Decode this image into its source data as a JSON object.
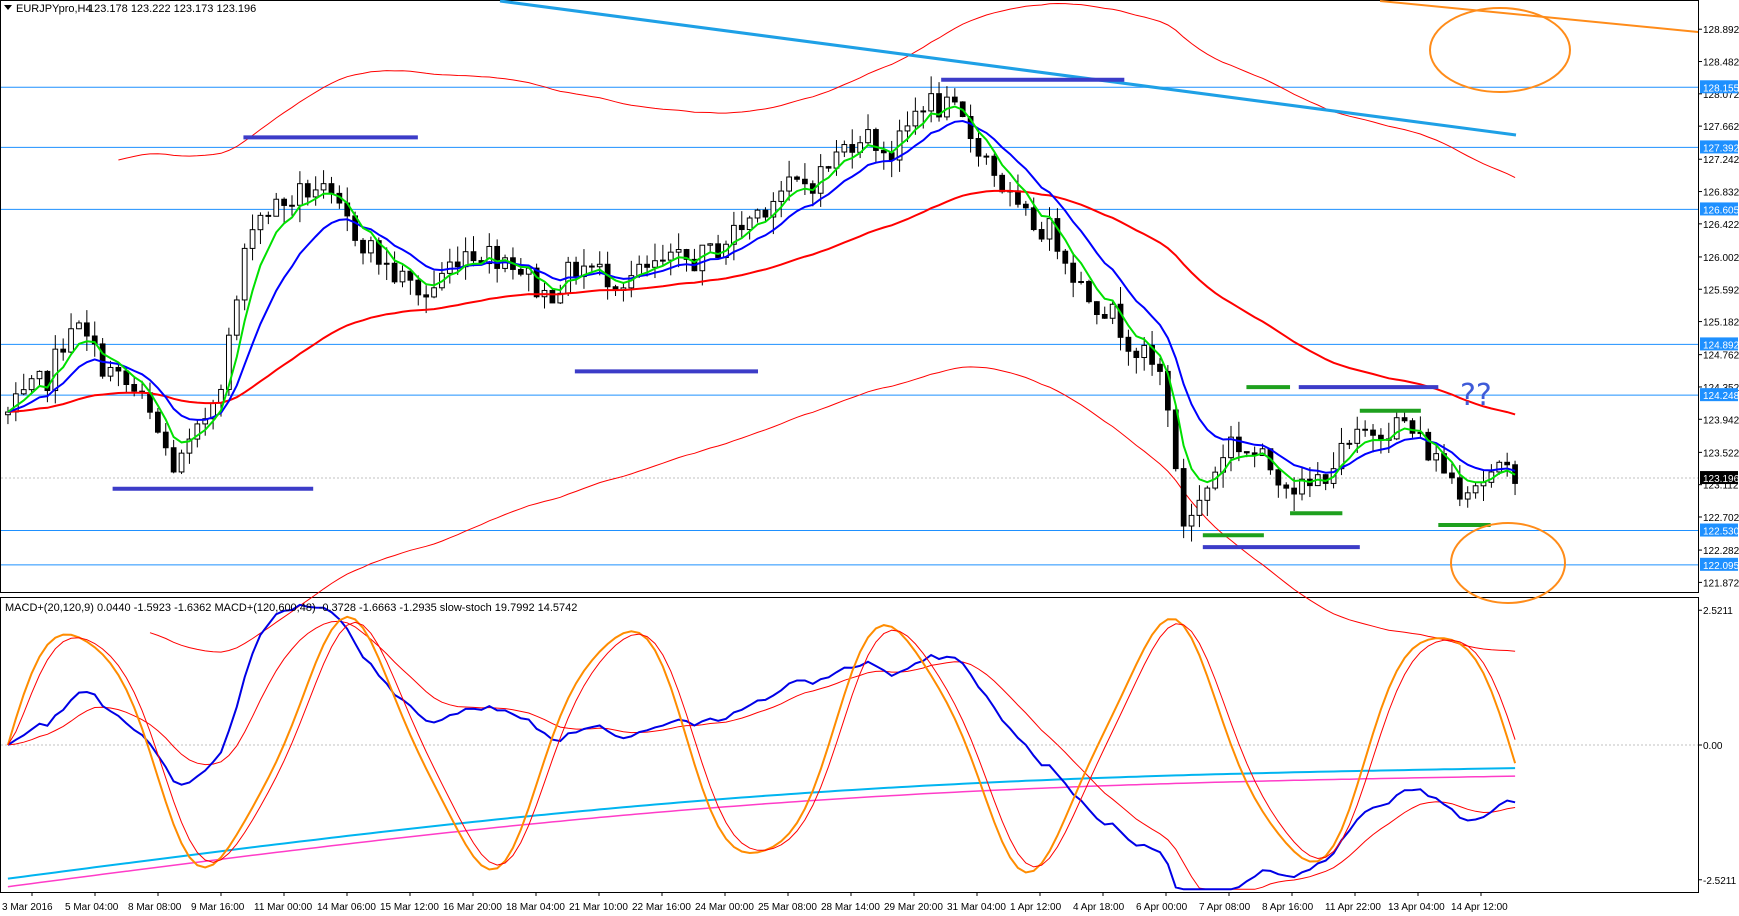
{
  "header": {
    "symbol": "EURJPYpro,H4",
    "ohlc": "123.178 123.222 123.173 123.196"
  },
  "indicator_header": "MACD+(20,120,9) 0.0440 -1.5923 -1.6362  MACD+(120,600,48) -0.3728 -1.6663 -1.2935  slow-stoch 19.7992 14.5742",
  "annotation": "??",
  "colors": {
    "background": "#ffffff",
    "bull_candle": "#ffffff",
    "bear_candle": "#000000",
    "horizontal_level": "#1e90ff",
    "price_tag": "#1e90ff",
    "current_price_tag": "#000000",
    "trendline": "#1ea0e6",
    "upper_trendline": "#ff8c1a",
    "ellipse": "#ff8c1a",
    "resistance_marker": "#3c3cc8",
    "support_marker": "#1ea01e",
    "ma_fast": "#00e000",
    "ma_mid": "#0000ff",
    "ma_slow": "#ff0000",
    "envelope": "#ff0000",
    "macd1_main": "#0000e6",
    "macd1_signal": "#ff0000",
    "macd2_main": "#00b4f0",
    "macd2_signal": "#ff3cc8",
    "stoch_main": "#ff8c00",
    "stoch_signal": "#ff0000"
  },
  "chart_data": [
    {
      "type": "candlestick",
      "symbol": "EURJPYpro",
      "timeframe": "H4",
      "y_ticks": [
        128.892,
        128.482,
        128.072,
        127.662,
        127.242,
        126.832,
        126.422,
        126.002,
        125.592,
        125.182,
        124.762,
        124.352,
        123.942,
        123.522,
        123.112,
        122.702,
        122.282,
        121.872
      ],
      "ylim": [
        121.75,
        129.25
      ],
      "x_ticks": [
        "3 Mar 2016",
        "5 Mar 04:00",
        "8 Mar 08:00",
        "9 Mar 16:00",
        "11 Mar 00:00",
        "14 Mar 06:00",
        "15 Mar 12:00",
        "16 Mar 20:00",
        "18 Mar 04:00",
        "21 Mar 10:00",
        "22 Mar 16:00",
        "24 Mar 00:00",
        "25 Mar 08:00",
        "28 Mar 14:00",
        "29 Mar 20:00",
        "31 Mar 04:00",
        "1 Apr 12:00",
        "4 Apr 18:00",
        "6 Apr 00:00",
        "7 Apr 08:00",
        "8 Apr 16:00",
        "11 Apr 22:00",
        "13 Apr 04:00",
        "14 Apr 12:00"
      ],
      "levels": [
        128.155,
        127.392,
        126.605,
        124.892,
        124.248,
        122.53,
        122.095
      ],
      "current_price": 123.196,
      "level_labels": [
        "128.155",
        "127.392",
        "126.605",
        "124.892",
        "124.248",
        "122.530",
        "122.095"
      ],
      "current_label": "123.196",
      "resistance_markers": [
        {
          "price": 128.25,
          "from": 107,
          "to": 128
        },
        {
          "price": 127.52,
          "from": 27,
          "to": 47
        },
        {
          "price": 124.55,
          "from": 65,
          "to": 86
        },
        {
          "price": 123.06,
          "from": 12,
          "to": 35
        },
        {
          "price": 124.35,
          "from": 148,
          "to": 164
        }
      ],
      "support_markers": [
        {
          "price": 124.35,
          "from": 142,
          "to": 147
        },
        {
          "price": 124.05,
          "from": 155,
          "to": 162
        },
        {
          "price": 122.75,
          "from": 147,
          "to": 153
        },
        {
          "price": 122.6,
          "from": 164,
          "to": 170
        },
        {
          "price": 122.47,
          "from": 137,
          "to": 144
        }
      ],
      "blue_support_marker": {
        "price": 122.32,
        "from": 137,
        "to": 155
      },
      "ma_fast_period": "short",
      "ma_mid_period": "medium",
      "ma_slow_period": "long"
    },
    {
      "type": "line",
      "y_ticks": [
        2.5211,
        0.0,
        -2.5211
      ],
      "y_tick_labels": [
        "2.5211",
        "0.00",
        "-2.5211"
      ],
      "ylim": [
        -2.75,
        2.75
      ],
      "series": [
        {
          "name": "MACD+(20,120,9) main"
        },
        {
          "name": "MACD+(20,120,9) signal"
        },
        {
          "name": "MACD+(120,600,48) main"
        },
        {
          "name": "MACD+(120,600,48) signal"
        },
        {
          "name": "slow-stoch main"
        },
        {
          "name": "slow-stoch signal"
        }
      ]
    }
  ]
}
